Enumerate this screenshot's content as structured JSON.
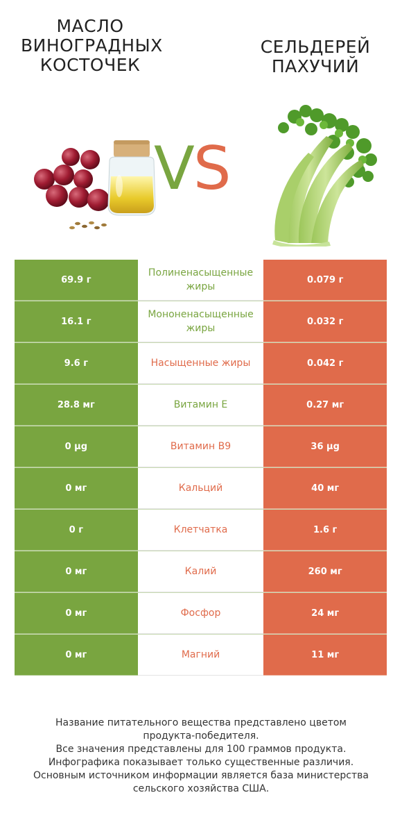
{
  "titles": {
    "left": [
      "масло",
      "виноградных",
      "косточек"
    ],
    "right": [
      "сельдерей",
      "пахучий"
    ]
  },
  "vs": {
    "v": "V",
    "s": "S"
  },
  "colors": {
    "left_accent": "#79a540",
    "right_accent": "#e06b4b"
  },
  "rows": [
    {
      "left": "69.9 г",
      "label": "Полиненасыщенные жиры",
      "right": "0.079 г",
      "winner": "left"
    },
    {
      "left": "16.1 г",
      "label": "Мононенасыщенные жиры",
      "right": "0.032 г",
      "winner": "left"
    },
    {
      "left": "9.6 г",
      "label": "Насыщенные жиры",
      "right": "0.042 г",
      "winner": "right"
    },
    {
      "left": "28.8 мг",
      "label": "Витамин E",
      "right": "0.27 мг",
      "winner": "left"
    },
    {
      "left": "0 µg",
      "label": "Витамин B9",
      "right": "36 µg",
      "winner": "right"
    },
    {
      "left": "0 мг",
      "label": "Кальций",
      "right": "40 мг",
      "winner": "right"
    },
    {
      "left": "0 г",
      "label": "Клетчатка",
      "right": "1.6 г",
      "winner": "right"
    },
    {
      "left": "0 мг",
      "label": "Калий",
      "right": "260 мг",
      "winner": "right"
    },
    {
      "left": "0 мг",
      "label": "Фосфор",
      "right": "24 мг",
      "winner": "right"
    },
    {
      "left": "0 мг",
      "label": "Магний",
      "right": "11 мг",
      "winner": "right"
    }
  ],
  "footer": [
    "Название питательного вещества представлено цветом",
    "продукта-победителя.",
    "Все значения представлены для 100 граммов продукта.",
    "Инфографика показывает только существенные различия.",
    "Основным источником информации является база министерства",
    "сельского хозяйства США."
  ]
}
